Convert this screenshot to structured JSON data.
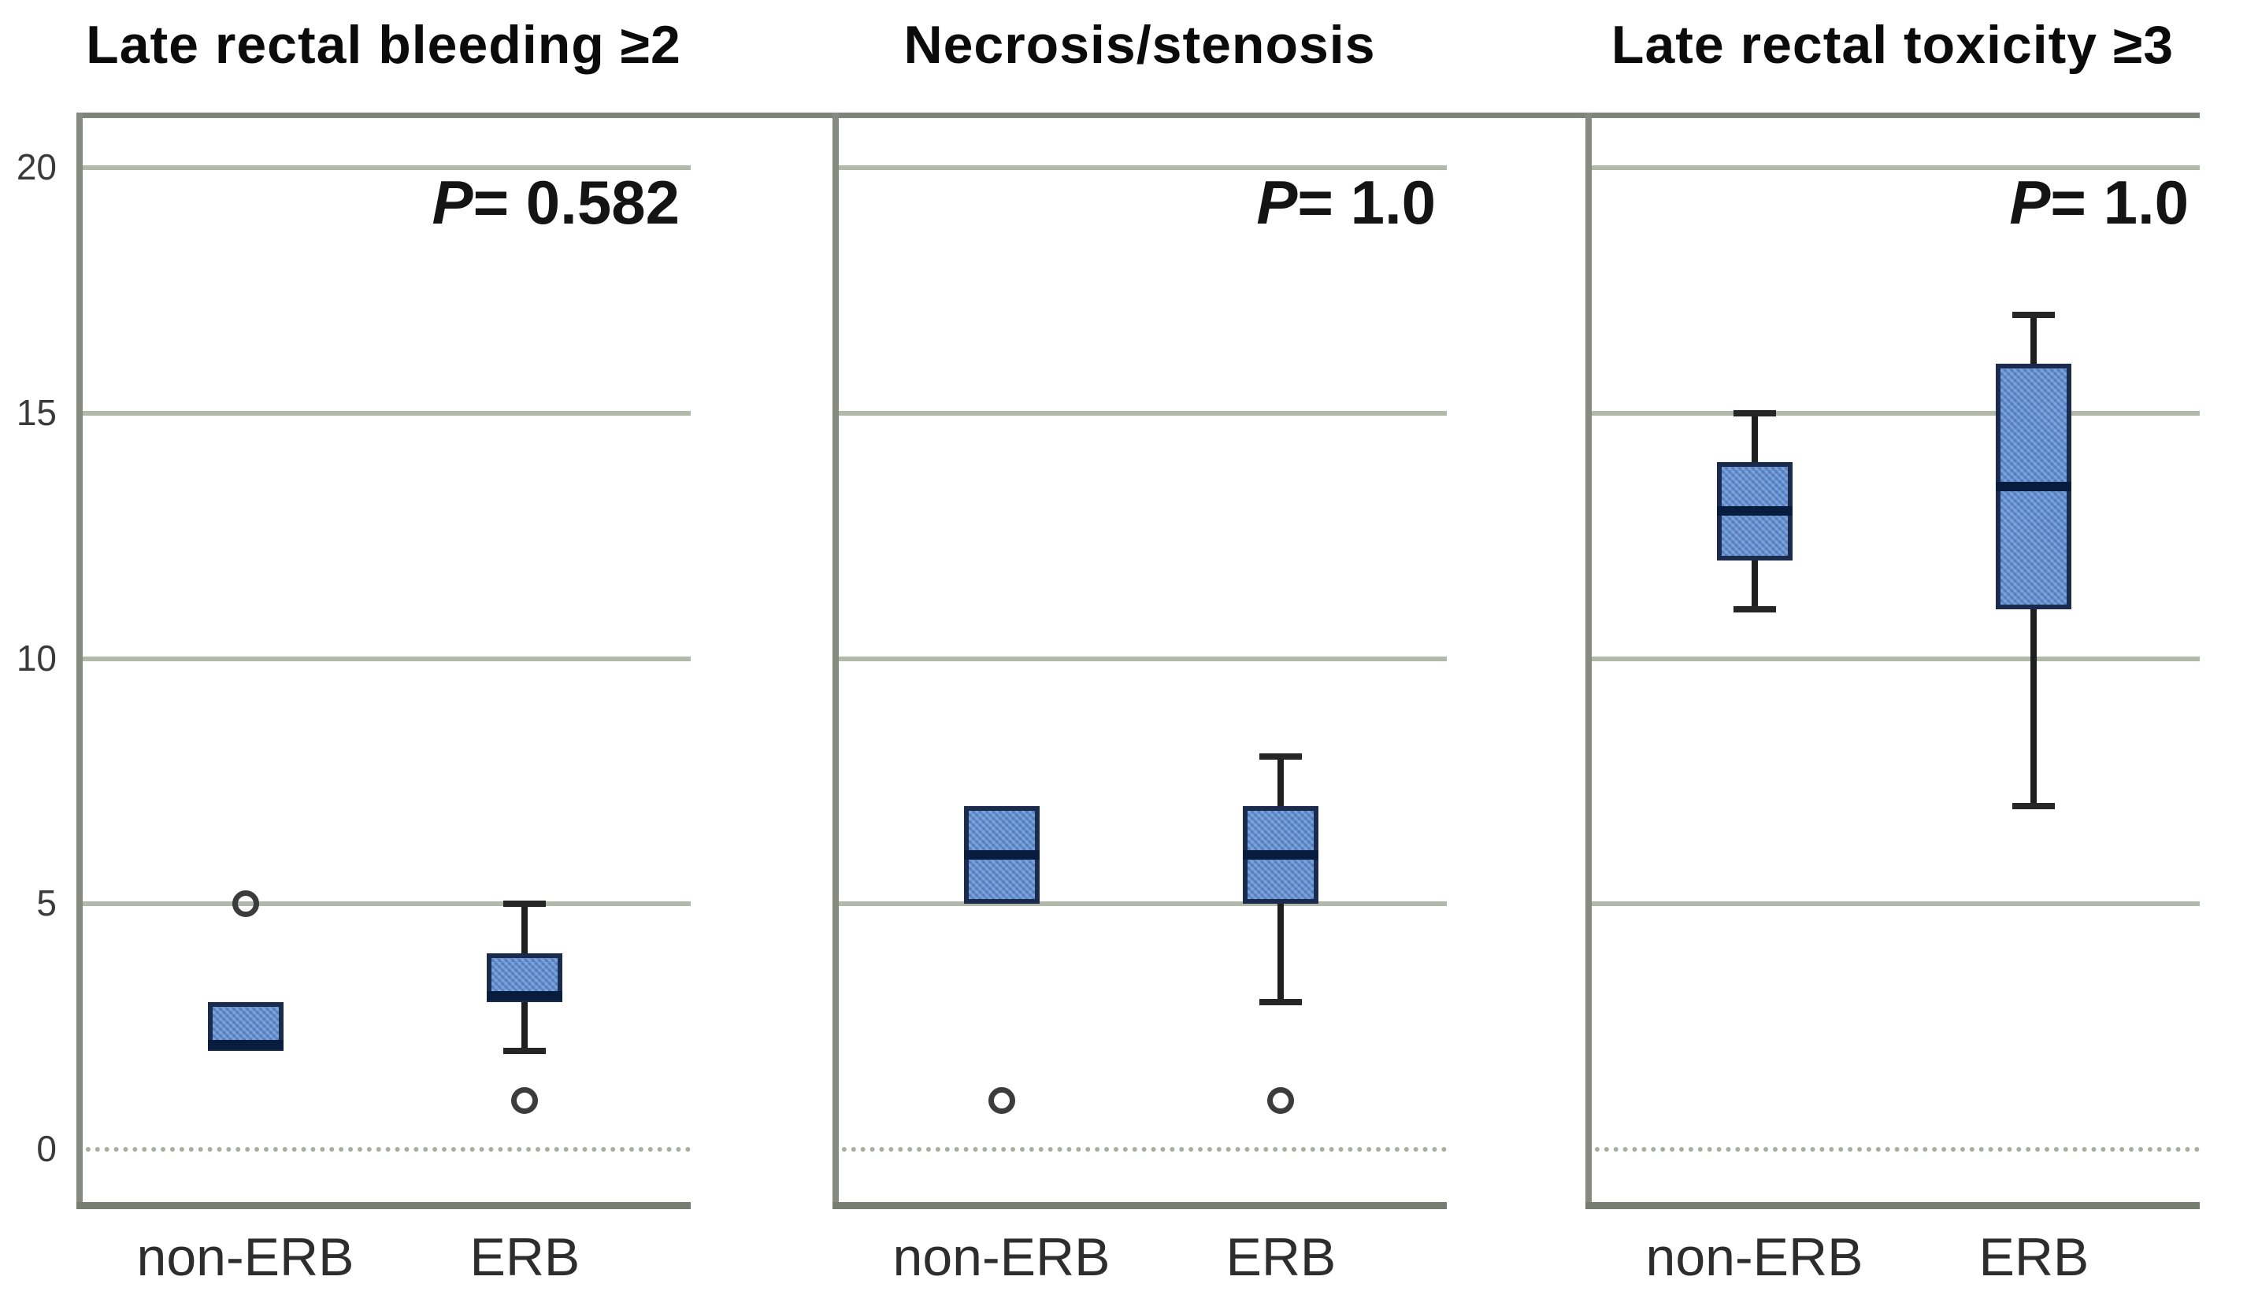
{
  "figure": {
    "background": "#ffffff"
  },
  "y_axis": {
    "ticks": [
      {
        "value": 20,
        "label": "20"
      },
      {
        "value": 15,
        "label": "15"
      },
      {
        "value": 10,
        "label": "10"
      },
      {
        "value": 5,
        "label": "5"
      },
      {
        "value": 0,
        "label": "0"
      }
    ]
  },
  "chart_data": [
    {
      "type": "box",
      "title": "Late rectal bleeding ≥2",
      "p_label": {
        "prefix": "P",
        "rest": "= 0.582"
      },
      "categories": [
        "non-ERB",
        "ERB"
      ],
      "ylim": [
        -1.2,
        21.1
      ],
      "yticks": [
        0,
        5,
        10,
        15,
        20
      ],
      "grid": true,
      "series": [
        {
          "category": "non-ERB",
          "q1": 2,
          "median": 2,
          "q3": 3,
          "whisker_low": 2,
          "whisker_high": 3,
          "outliers": [
            5
          ]
        },
        {
          "category": "ERB",
          "q1": 3,
          "median": 3,
          "q3": 4,
          "whisker_low": 2,
          "whisker_high": 5,
          "outliers": [
            1
          ]
        }
      ]
    },
    {
      "type": "box",
      "title": "Necrosis/stenosis",
      "p_label": {
        "prefix": "P",
        "rest": "= 1.0"
      },
      "categories": [
        "non-ERB",
        "ERB"
      ],
      "ylim": [
        -1.2,
        21.1
      ],
      "yticks": [
        0,
        5,
        10,
        15,
        20
      ],
      "grid": true,
      "series": [
        {
          "category": "non-ERB",
          "q1": 5,
          "median": 6,
          "q3": 7,
          "whisker_low": 5,
          "whisker_high": 7,
          "outliers": [
            1
          ]
        },
        {
          "category": "ERB",
          "q1": 5,
          "median": 6,
          "q3": 7,
          "whisker_low": 3,
          "whisker_high": 8,
          "outliers": [
            1
          ]
        }
      ]
    },
    {
      "type": "box",
      "title": "Late rectal toxicity ≥3",
      "p_label": {
        "prefix": "P",
        "rest": "= 1.0"
      },
      "categories": [
        "non-ERB",
        "ERB"
      ],
      "ylim": [
        -1.2,
        21.1
      ],
      "yticks": [
        0,
        5,
        10,
        15,
        20
      ],
      "grid": true,
      "series": [
        {
          "category": "non-ERB",
          "q1": 12,
          "median": 13,
          "q3": 14,
          "whisker_low": 11,
          "whisker_high": 15,
          "outliers": []
        },
        {
          "category": "ERB",
          "q1": 11,
          "median": 13.5,
          "q3": 16,
          "whisker_low": 7,
          "whisker_high": 17,
          "outliers": []
        }
      ]
    }
  ],
  "colors": {
    "box_fill": "#5b8bd0",
    "box_border": "#1b2b4d",
    "median_line": "#081c3e",
    "whisker": "#1f1f1f",
    "outlier_ring": "#3c3c3c",
    "gridline": "#b2b8aa",
    "panel_border": "#7f847a",
    "title_text": "#0b0b0b",
    "tick_text": "#3a3a3a",
    "background": "#ffffff"
  }
}
